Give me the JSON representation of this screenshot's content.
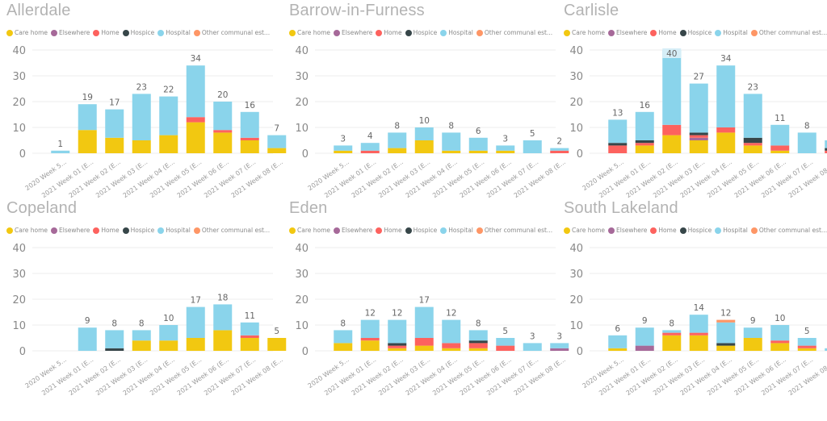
{
  "chart_data": {
    "type": "bar",
    "stacked": true,
    "categories": [
      "2020 Week 5...",
      "2021 Week 01 (E...",
      "2021 Week 02 (E...",
      "2021 Week 03 (E...",
      "2021 Week 04 (E...",
      "2021 Week 05 (E...",
      "2021 Week 06 (E...",
      "2021 Week 07 (E...",
      "2021 Week 08 (E..."
    ],
    "legend": [
      {
        "name": "Care home",
        "color": "#f2c811"
      },
      {
        "name": "Elsewhere",
        "color": "#a66999"
      },
      {
        "name": "Home",
        "color": "#fd625e"
      },
      {
        "name": "Hospice",
        "color": "#374649"
      },
      {
        "name": "Hospital",
        "color": "#8ad4eb"
      },
      {
        "name": "Other communal est...",
        "color": "#fe9666"
      }
    ],
    "ylim": [
      0,
      40
    ],
    "yticks": [
      0,
      10,
      20,
      30,
      40
    ],
    "grid": true,
    "legend_position": "top-left",
    "panels": [
      {
        "title": "Allerdale",
        "totals": [
          1,
          19,
          17,
          23,
          22,
          34,
          20,
          16,
          7
        ],
        "series": [
          {
            "name": "Care home",
            "values": [
              0,
              9,
              6,
              5,
              7,
              12,
              8,
              5,
              2
            ]
          },
          {
            "name": "Elsewhere",
            "values": [
              0,
              0,
              0,
              0,
              0,
              0,
              0,
              0,
              0
            ]
          },
          {
            "name": "Home",
            "values": [
              0,
              0,
              0,
              0,
              0,
              2,
              1,
              1,
              0
            ]
          },
          {
            "name": "Hospice",
            "values": [
              0,
              0,
              0,
              0,
              0,
              0,
              0,
              0,
              0
            ]
          },
          {
            "name": "Hospital",
            "values": [
              1,
              10,
              11,
              18,
              15,
              20,
              11,
              10,
              5
            ]
          },
          {
            "name": "Other communal est...",
            "values": [
              0,
              0,
              0,
              0,
              0,
              0,
              0,
              0,
              0
            ]
          }
        ]
      },
      {
        "title": "Barrow-in-Furness",
        "totals": [
          3,
          4,
          8,
          10,
          8,
          6,
          3,
          5,
          2
        ],
        "series": [
          {
            "name": "Care home",
            "values": [
              1,
              0,
              2,
              5,
              1,
              1,
              1,
              0,
              0
            ]
          },
          {
            "name": "Elsewhere",
            "values": [
              0,
              0,
              0,
              0,
              0,
              0,
              0,
              0,
              0
            ]
          },
          {
            "name": "Home",
            "values": [
              0,
              1,
              0,
              0,
              0,
              0,
              0,
              0,
              1
            ]
          },
          {
            "name": "Hospice",
            "values": [
              0,
              0,
              0,
              0,
              0,
              0,
              0,
              0,
              0
            ]
          },
          {
            "name": "Hospital",
            "values": [
              2,
              3,
              6,
              5,
              7,
              5,
              2,
              5,
              1
            ]
          },
          {
            "name": "Other communal est...",
            "values": [
              0,
              0,
              0,
              0,
              0,
              0,
              0,
              0,
              0
            ]
          }
        ]
      },
      {
        "title": "Carlisle",
        "totals": [
          13,
          16,
          40,
          27,
          34,
          23,
          11,
          8,
          5
        ],
        "series": [
          {
            "name": "Care home",
            "values": [
              0,
              3,
              7,
              5,
              8,
              3,
              1,
              0,
              0
            ]
          },
          {
            "name": "Elsewhere",
            "values": [
              0,
              0,
              0,
              1,
              0,
              0,
              0,
              0,
              0
            ]
          },
          {
            "name": "Home",
            "values": [
              3,
              1,
              4,
              1,
              2,
              1,
              2,
              0,
              1
            ]
          },
          {
            "name": "Hospice",
            "values": [
              1,
              1,
              0,
              1,
              0,
              2,
              0,
              0,
              1
            ]
          },
          {
            "name": "Hospital",
            "values": [
              9,
              11,
              29,
              19,
              24,
              17,
              8,
              8,
              3
            ]
          },
          {
            "name": "Other communal est...",
            "values": [
              0,
              0,
              0,
              0,
              0,
              0,
              0,
              0,
              0
            ]
          }
        ]
      },
      {
        "title": "Copeland",
        "totals": [
          0,
          9,
          8,
          8,
          10,
          17,
          18,
          11,
          5
        ],
        "series": [
          {
            "name": "Care home",
            "values": [
              0,
              0,
              0,
              4,
              4,
              5,
              8,
              5,
              5
            ]
          },
          {
            "name": "Elsewhere",
            "values": [
              0,
              0,
              0,
              0,
              0,
              0,
              0,
              0,
              0
            ]
          },
          {
            "name": "Home",
            "values": [
              0,
              0,
              0,
              0,
              0,
              0,
              0,
              1,
              0
            ]
          },
          {
            "name": "Hospice",
            "values": [
              0,
              0,
              1,
              0,
              0,
              0,
              0,
              0,
              0
            ]
          },
          {
            "name": "Hospital",
            "values": [
              0,
              9,
              7,
              4,
              6,
              12,
              10,
              5,
              0
            ]
          },
          {
            "name": "Other communal est...",
            "values": [
              0,
              0,
              0,
              0,
              0,
              0,
              0,
              0,
              0
            ]
          }
        ]
      },
      {
        "title": "Eden",
        "totals": [
          8,
          12,
          12,
          17,
          12,
          8,
          5,
          3,
          3
        ],
        "series": [
          {
            "name": "Care home",
            "values": [
              3,
              4,
              1,
              2,
              1,
              1,
              0,
              0,
              0
            ]
          },
          {
            "name": "Elsewhere",
            "values": [
              0,
              0,
              0,
              0,
              0,
              0,
              0,
              0,
              1
            ]
          },
          {
            "name": "Home",
            "values": [
              0,
              1,
              1,
              3,
              2,
              2,
              2,
              0,
              0
            ]
          },
          {
            "name": "Hospice",
            "values": [
              0,
              0,
              1,
              0,
              0,
              1,
              0,
              0,
              0
            ]
          },
          {
            "name": "Hospital",
            "values": [
              5,
              7,
              9,
              12,
              9,
              4,
              3,
              3,
              2
            ]
          },
          {
            "name": "Other communal est...",
            "values": [
              0,
              0,
              0,
              0,
              0,
              0,
              0,
              0,
              0
            ]
          }
        ]
      },
      {
        "title": "South Lakeland",
        "totals": [
          6,
          9,
          8,
          14,
          12,
          9,
          10,
          5,
          1
        ],
        "series": [
          {
            "name": "Care home",
            "values": [
              1,
              0,
              6,
              6,
              2,
              5,
              3,
              1,
              0
            ]
          },
          {
            "name": "Elsewhere",
            "values": [
              0,
              2,
              0,
              0,
              0,
              0,
              0,
              0,
              0
            ]
          },
          {
            "name": "Home",
            "values": [
              0,
              0,
              1,
              1,
              0,
              0,
              1,
              1,
              0
            ]
          },
          {
            "name": "Hospice",
            "values": [
              0,
              0,
              0,
              0,
              1,
              0,
              0,
              0,
              0
            ]
          },
          {
            "name": "Hospital",
            "values": [
              5,
              7,
              1,
              7,
              8,
              4,
              6,
              3,
              1
            ]
          },
          {
            "name": "Other communal est...",
            "values": [
              0,
              0,
              0,
              0,
              1,
              0,
              0,
              0,
              0
            ]
          }
        ]
      }
    ]
  }
}
